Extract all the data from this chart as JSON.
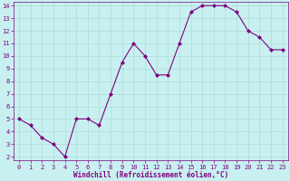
{
  "x": [
    0,
    1,
    2,
    3,
    4,
    5,
    6,
    7,
    8,
    9,
    10,
    11,
    12,
    13,
    14,
    15,
    16,
    17,
    18,
    19,
    20,
    21,
    22,
    23
  ],
  "y": [
    5.0,
    4.5,
    3.5,
    3.0,
    2.0,
    5.0,
    5.0,
    4.5,
    7.0,
    9.5,
    11.0,
    10.0,
    8.5,
    8.5,
    11.0,
    13.5,
    14.0,
    14.0,
    14.0,
    13.5,
    12.0,
    11.5,
    10.5,
    10.5
  ],
  "line_color": "#800080",
  "marker": "D",
  "marker_size": 2.0,
  "bg_color": "#c8f0f0",
  "grid_color": "#aadddd",
  "xlabel": "Windchill (Refroidissement éolien,°C)",
  "xlabel_color": "#800080",
  "tick_color": "#800080",
  "ylim": [
    2,
    14
  ],
  "xlim": [
    -0.5,
    23.5
  ],
  "yticks": [
    2,
    3,
    4,
    5,
    6,
    7,
    8,
    9,
    10,
    11,
    12,
    13,
    14
  ],
  "xticks": [
    0,
    1,
    2,
    3,
    4,
    5,
    6,
    7,
    8,
    9,
    10,
    11,
    12,
    13,
    14,
    15,
    16,
    17,
    18,
    19,
    20,
    21,
    22,
    23
  ],
  "tick_fontsize": 5.0,
  "xlabel_fontsize": 5.5,
  "linewidth": 0.8
}
